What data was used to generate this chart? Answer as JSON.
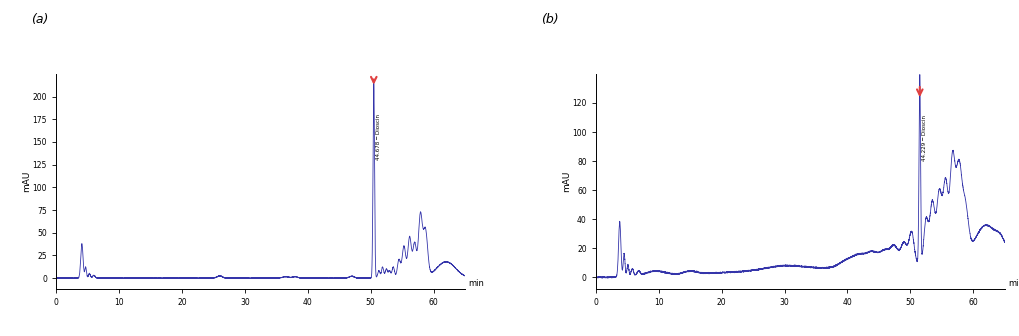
{
  "panel_a_label": "(a)",
  "panel_b_label": "(b)",
  "ylabel": "mAU",
  "xlabel": "min",
  "a_yticks": [
    0,
    25,
    50,
    75,
    100,
    125,
    150,
    175,
    200
  ],
  "a_ylim": [
    -12,
    225
  ],
  "a_xlim": [
    0,
    65
  ],
  "a_xticks": [
    0,
    10,
    20,
    30,
    40,
    50,
    60
  ],
  "b_yticks": [
    0,
    20,
    40,
    60,
    80,
    100,
    120
  ],
  "b_ylim": [
    -8,
    140
  ],
  "b_xlim": [
    0,
    65
  ],
  "b_xticks": [
    0,
    10,
    20,
    30,
    40,
    50,
    60
  ],
  "line_color": "#3535aa",
  "arrow_color": "#e04040",
  "bg_color": "#ffffff"
}
